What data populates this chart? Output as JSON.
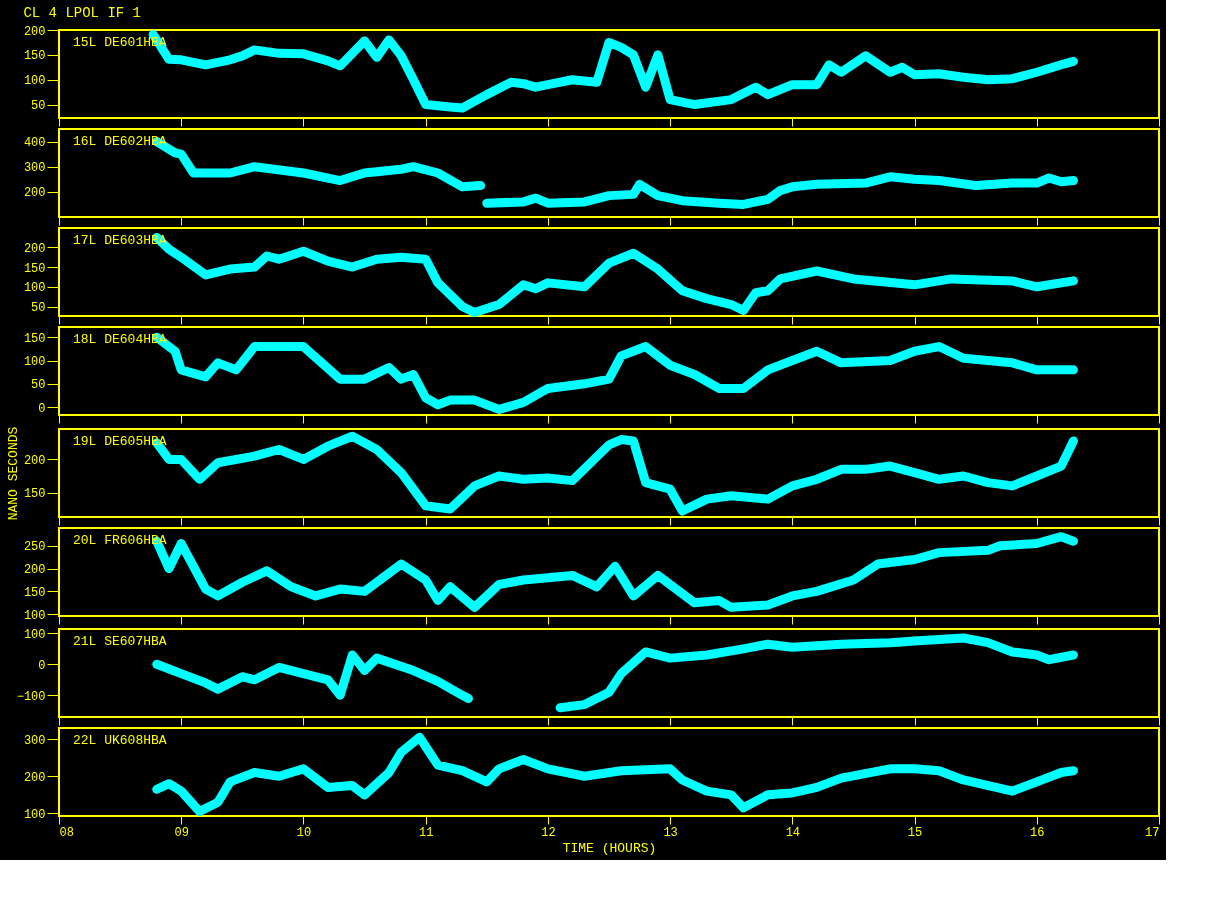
{
  "chart_data": [
    {
      "type": "line",
      "title": "CL 4  LPOL  IF 1",
      "xlim": [
        8,
        17
      ],
      "xticks": [
        8,
        9,
        10,
        11,
        12,
        13,
        14,
        15,
        16,
        17
      ],
      "ylim": [
        23,
        200
      ],
      "yticks": [
        50,
        100,
        150,
        200
      ],
      "tick_labels": "y",
      "grid": false,
      "legend": false,
      "marker": "none",
      "line_style": "solid",
      "series": [
        {
          "name": "15L DE601HBA",
          "color": "#00ffff",
          "x": [
            8.77,
            8.9,
            9.0,
            9.2,
            9.4,
            9.5,
            9.6,
            9.8,
            10.0,
            10.2,
            10.3,
            10.5,
            10.6,
            10.7,
            10.8,
            10.9,
            11.0,
            11.2,
            11.3,
            11.5,
            11.7,
            11.8,
            11.9,
            12.0,
            12.2,
            12.4,
            12.5,
            12.6,
            12.7,
            12.8,
            12.9,
            13.0,
            13.2,
            13.5,
            13.7,
            13.8,
            14.0,
            14.2,
            14.3,
            14.4,
            14.6,
            14.8,
            14.9,
            15.0,
            15.2,
            15.4,
            15.6,
            15.8,
            16.0,
            16.2,
            16.3
          ],
          "values": [
            191,
            141,
            140,
            130,
            140,
            148,
            160,
            153,
            152,
            138,
            128,
            178,
            145,
            180,
            148,
            100,
            50,
            45,
            43,
            70,
            95,
            92,
            85,
            90,
            100,
            95,
            175,
            165,
            150,
            85,
            150,
            60,
            50,
            60,
            85,
            70,
            90,
            90,
            130,
            115,
            148,
            115,
            125,
            110,
            112,
            105,
            100,
            102,
            115,
            130,
            137
          ]
        }
      ]
    },
    {
      "type": "line",
      "xlim": [
        8,
        17
      ],
      "xticks": [
        8,
        9,
        10,
        11,
        12,
        13,
        14,
        15,
        16,
        17
      ],
      "ylim": [
        100,
        450
      ],
      "yticks": [
        200,
        300,
        400
      ],
      "tick_labels": "y",
      "grid": false,
      "legend": false,
      "marker": "none",
      "line_style": "solid",
      "series": [
        {
          "name": "16L DE602HBA",
          "color": "#00ffff",
          "x": [
            8.8,
            8.95,
            9.0,
            9.1,
            9.4,
            9.6,
            10.0,
            10.3,
            10.5,
            10.8,
            10.9,
            11.1,
            11.3,
            11.45,
            11.47,
            11.5,
            11.8,
            11.9,
            12.0,
            12.3,
            12.5,
            12.7,
            12.75,
            12.9,
            13.1,
            13.4,
            13.6,
            13.8,
            13.9,
            14.0,
            14.2,
            14.6,
            14.8,
            15.0,
            15.2,
            15.5,
            15.8,
            16.0,
            16.1,
            16.2,
            16.3
          ],
          "values": [
            400,
            355,
            350,
            275,
            275,
            300,
            275,
            245,
            275,
            290,
            300,
            275,
            220,
            225,
            null,
            155,
            160,
            175,
            155,
            160,
            185,
            190,
            230,
            185,
            165,
            155,
            150,
            170,
            205,
            220,
            230,
            235,
            260,
            250,
            245,
            225,
            235,
            235,
            255,
            240,
            245
          ]
        }
      ]
    },
    {
      "type": "line",
      "xlim": [
        8,
        17
      ],
      "xticks": [
        8,
        9,
        10,
        11,
        12,
        13,
        14,
        15,
        16,
        17
      ],
      "ylim": [
        26,
        249
      ],
      "yticks": [
        50,
        100,
        150,
        200
      ],
      "tick_labels": "y",
      "grid": false,
      "legend": false,
      "marker": "none",
      "line_style": "solid",
      "series": [
        {
          "name": "17L DE603HBA",
          "color": "#00ffff",
          "x": [
            8.8,
            8.9,
            9.0,
            9.2,
            9.4,
            9.6,
            9.7,
            9.8,
            10.0,
            10.2,
            10.4,
            10.6,
            10.8,
            11.0,
            11.1,
            11.3,
            11.4,
            11.6,
            11.8,
            11.9,
            12.0,
            12.3,
            12.5,
            12.7,
            12.9,
            13.1,
            13.3,
            13.5,
            13.6,
            13.7,
            13.8,
            13.9,
            14.2,
            14.5,
            15.0,
            15.3,
            15.8,
            16.0,
            16.3
          ],
          "values": [
            225,
            195,
            175,
            130,
            145,
            150,
            178,
            170,
            190,
            165,
            150,
            170,
            175,
            170,
            110,
            50,
            35,
            55,
            105,
            95,
            110,
            100,
            160,
            185,
            145,
            90,
            70,
            55,
            40,
            85,
            90,
            120,
            140,
            120,
            105,
            120,
            115,
            100,
            115
          ]
        }
      ]
    },
    {
      "type": "line",
      "xlim": [
        8,
        17
      ],
      "xticks": [
        8,
        9,
        10,
        11,
        12,
        13,
        14,
        15,
        16,
        17
      ],
      "ylim": [
        -17,
        172
      ],
      "yticks": [
        0,
        50,
        100,
        150
      ],
      "tick_labels": "y",
      "grid": false,
      "legend": false,
      "marker": "none",
      "line_style": "solid",
      "series": [
        {
          "name": "18L DE604HBA",
          "color": "#00ffff",
          "x": [
            8.8,
            8.95,
            9.0,
            9.2,
            9.3,
            9.45,
            9.6,
            9.8,
            10.0,
            10.3,
            10.5,
            10.7,
            10.8,
            10.9,
            11.0,
            11.1,
            11.2,
            11.4,
            11.6,
            11.8,
            12.0,
            12.3,
            12.5,
            12.6,
            12.8,
            13.0,
            13.2,
            13.4,
            13.6,
            13.8,
            14.0,
            14.2,
            14.4,
            14.8,
            15.0,
            15.2,
            15.4,
            15.8,
            16.0,
            16.3
          ],
          "values": [
            150,
            120,
            80,
            65,
            95,
            80,
            130,
            130,
            130,
            60,
            60,
            85,
            60,
            70,
            20,
            5,
            15,
            15,
            -5,
            10,
            40,
            50,
            60,
            110,
            130,
            90,
            70,
            40,
            40,
            80,
            100,
            120,
            95,
            100,
            120,
            130,
            105,
            95,
            80,
            80
          ]
        }
      ]
    },
    {
      "type": "line",
      "ylabel": "NANO SECONDS",
      "xlim": [
        8,
        17
      ],
      "xticks": [
        8,
        9,
        10,
        11,
        12,
        13,
        14,
        15,
        16,
        17
      ],
      "ylim": [
        113,
        246
      ],
      "yticks": [
        150,
        200
      ],
      "tick_labels": "y",
      "grid": false,
      "legend": false,
      "marker": "none",
      "line_style": "solid",
      "series": [
        {
          "name": "19L DE605HBA",
          "color": "#00ffff",
          "x": [
            8.8,
            8.9,
            9.0,
            9.15,
            9.3,
            9.6,
            9.8,
            10.0,
            10.2,
            10.4,
            10.6,
            10.8,
            11.0,
            11.2,
            11.4,
            11.6,
            11.8,
            12.0,
            12.2,
            12.5,
            12.6,
            12.7,
            12.8,
            13.0,
            13.1,
            13.3,
            13.5,
            13.8,
            14.0,
            14.2,
            14.4,
            14.6,
            14.8,
            15.0,
            15.2,
            15.4,
            15.6,
            15.8,
            16.0,
            16.2,
            16.3
          ],
          "values": [
            225,
            200,
            200,
            170,
            195,
            205,
            215,
            200,
            220,
            235,
            215,
            180,
            130,
            125,
            160,
            175,
            170,
            172,
            168,
            222,
            230,
            228,
            165,
            155,
            122,
            140,
            145,
            140,
            160,
            170,
            185,
            185,
            190,
            180,
            170,
            175,
            165,
            160,
            175,
            190,
            228
          ]
        }
      ]
    },
    {
      "type": "line",
      "xlim": [
        8,
        17
      ],
      "xticks": [
        8,
        9,
        10,
        11,
        12,
        13,
        14,
        15,
        16,
        17
      ],
      "ylim": [
        96,
        289
      ],
      "yticks": [
        100,
        150,
        200,
        250
      ],
      "tick_labels": "y",
      "grid": false,
      "legend": false,
      "marker": "none",
      "line_style": "solid",
      "series": [
        {
          "name": "20L FR606HBA",
          "color": "#00ffff",
          "x": [
            8.8,
            8.9,
            9.0,
            9.2,
            9.3,
            9.5,
            9.7,
            9.9,
            10.1,
            10.3,
            10.5,
            10.8,
            11.0,
            11.1,
            11.2,
            11.4,
            11.6,
            11.8,
            12.0,
            12.2,
            12.4,
            12.55,
            12.7,
            12.9,
            13.2,
            13.4,
            13.5,
            13.8,
            14.0,
            14.2,
            14.5,
            14.7,
            15.0,
            15.2,
            15.6,
            15.7,
            16.0,
            16.2,
            16.3
          ],
          "values": [
            260,
            200,
            255,
            155,
            140,
            170,
            195,
            160,
            140,
            155,
            150,
            210,
            175,
            130,
            160,
            115,
            165,
            175,
            180,
            185,
            160,
            205,
            140,
            185,
            125,
            130,
            115,
            120,
            140,
            150,
            175,
            210,
            220,
            235,
            240,
            250,
            255,
            270,
            260
          ]
        }
      ]
    },
    {
      "type": "line",
      "xlim": [
        8,
        17
      ],
      "xticks": [
        8,
        9,
        10,
        11,
        12,
        13,
        14,
        15,
        16,
        17
      ],
      "ylim": [
        -170,
        114
      ],
      "yticks": [
        -100,
        0,
        100
      ],
      "tick_labels": "y",
      "grid": false,
      "legend": false,
      "marker": "none",
      "line_style": "solid",
      "series": [
        {
          "name": "21L SE607HBA",
          "color": "#00ffff",
          "x": [
            8.8,
            9.0,
            9.2,
            9.3,
            9.5,
            9.6,
            9.8,
            10.0,
            10.2,
            10.3,
            10.4,
            10.5,
            10.6,
            10.9,
            11.1,
            11.3,
            11.35,
            11.7,
            12.1,
            12.3,
            12.5,
            12.6,
            12.8,
            13.0,
            13.3,
            13.6,
            13.8,
            14.0,
            14.4,
            14.8,
            15.0,
            15.4,
            15.6,
            15.8,
            16.0,
            16.1,
            16.3
          ],
          "values": [
            0,
            -30,
            -60,
            -80,
            -40,
            -50,
            -10,
            -30,
            -50,
            -100,
            30,
            -20,
            20,
            -20,
            -55,
            -100,
            -110,
            null,
            -140,
            -130,
            -90,
            -30,
            40,
            20,
            30,
            50,
            65,
            55,
            65,
            70,
            75,
            85,
            70,
            40,
            30,
            15,
            30
          ]
        }
      ]
    },
    {
      "type": "line",
      "xlabel": "TIME (HOURS)",
      "xlim": [
        8,
        17
      ],
      "xticks": [
        {
          "value": 8,
          "label": "08"
        },
        {
          "value": 9,
          "label": "09"
        },
        10,
        11,
        12,
        13,
        14,
        15,
        16,
        17
      ],
      "ylim": [
        93,
        330
      ],
      "yticks": [
        100,
        200,
        300
      ],
      "grid": false,
      "legend": false,
      "marker": "none",
      "line_style": "solid",
      "series": [
        {
          "name": "22L UK608HBA",
          "color": "#00ffff",
          "x": [
            8.8,
            8.9,
            9.0,
            9.15,
            9.3,
            9.4,
            9.6,
            9.8,
            10.0,
            10.2,
            10.4,
            10.5,
            10.7,
            10.8,
            10.95,
            11.1,
            11.3,
            11.5,
            11.6,
            11.8,
            12.0,
            12.3,
            12.6,
            13.0,
            13.1,
            13.3,
            13.5,
            13.6,
            13.8,
            14.0,
            14.2,
            14.4,
            14.8,
            15.0,
            15.2,
            15.4,
            15.8,
            16.0,
            16.2,
            16.3
          ],
          "values": [
            165,
            180,
            160,
            105,
            130,
            185,
            210,
            200,
            220,
            170,
            175,
            150,
            210,
            265,
            305,
            230,
            215,
            185,
            220,
            245,
            220,
            200,
            215,
            220,
            190,
            160,
            150,
            115,
            150,
            155,
            170,
            195,
            220,
            220,
            215,
            190,
            160,
            185,
            210,
            215
          ]
        }
      ]
    }
  ]
}
